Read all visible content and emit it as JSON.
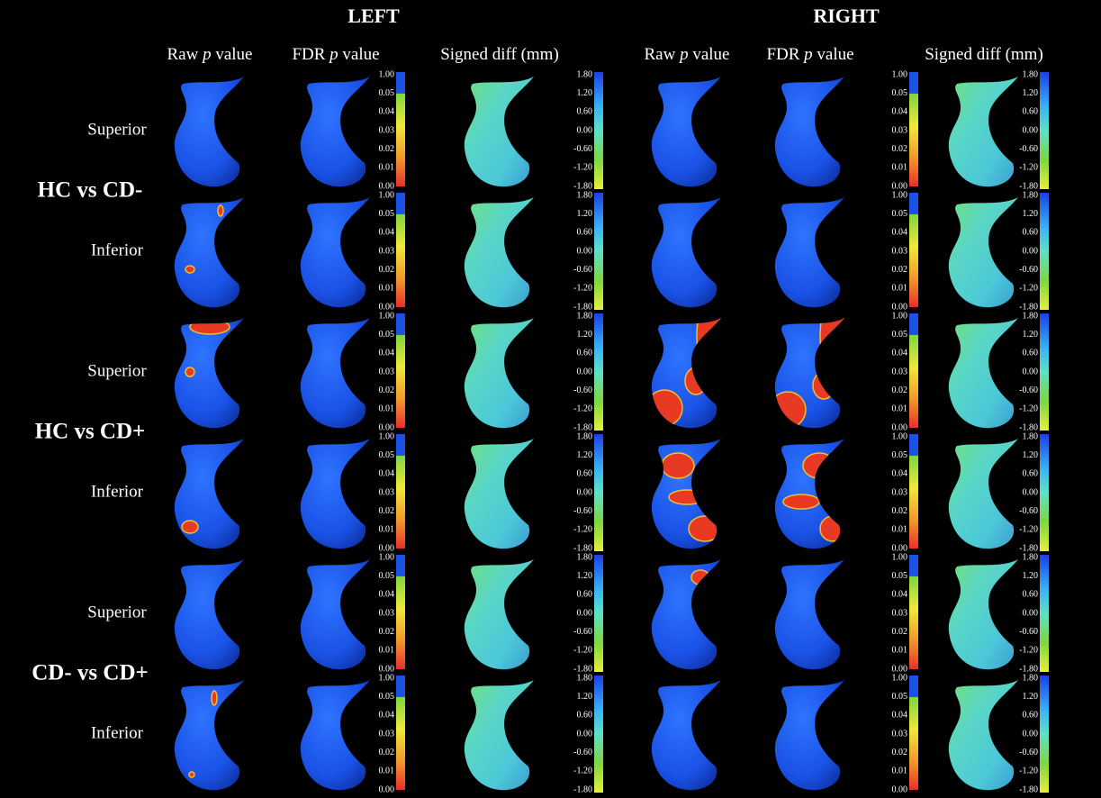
{
  "sides": [
    "LEFT",
    "RIGHT"
  ],
  "columns": [
    [
      "Raw ",
      "p",
      " value"
    ],
    [
      "FDR ",
      "p",
      " value"
    ],
    [
      "Signed diff (mm)"
    ]
  ],
  "views": [
    "Superior",
    "Inferior"
  ],
  "groups": [
    "HC vs CD-",
    "HC vs CD+",
    "CD- vs CD+"
  ],
  "p_scale": [
    "1.00",
    "0.05",
    "0.04",
    "0.03",
    "0.02",
    "0.01",
    "0.00"
  ],
  "diff_scale": [
    "1.80",
    "1.20",
    "0.60",
    "0.00",
    "-0.60",
    "-1.20",
    "-1.80"
  ]
}
